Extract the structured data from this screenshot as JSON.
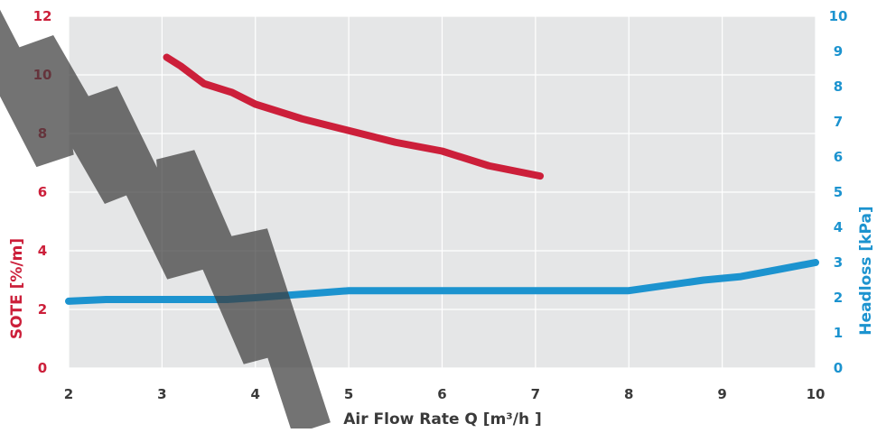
{
  "chart_data": {
    "type": "line",
    "title": "",
    "xlabel": "Air Flow Rate Q [m³/h ]",
    "ylabel_left": "SOTE [%/m]",
    "ylabel_right": "Headloss [kPa]",
    "xlim": [
      2,
      10
    ],
    "ylim_left": [
      0,
      12
    ],
    "ylim_right": [
      0,
      10
    ],
    "x_ticks": [
      "2",
      "3",
      "4",
      "5",
      "6",
      "7",
      "8",
      "9",
      "10"
    ],
    "y_left_ticks": [
      "0",
      "2",
      "4",
      "6",
      "8",
      "10",
      "12"
    ],
    "y_right_ticks": [
      "0",
      "1",
      "2",
      "3",
      "4",
      "5",
      "6",
      "7",
      "8",
      "9",
      "10"
    ],
    "grid": true,
    "series": [
      {
        "axis": "left",
        "color": "#cc1f3a",
        "x": [
          3.05,
          3.2,
          3.45,
          3.75,
          4.0,
          4.5,
          5.0,
          5.5,
          6.0,
          6.5,
          7.05
        ],
        "y": [
          10.6,
          10.3,
          9.7,
          9.4,
          9.0,
          8.5,
          8.1,
          7.7,
          7.4,
          6.9,
          6.55
        ]
      },
      {
        "axis": "right",
        "color": "#1c93cf",
        "x": [
          2.0,
          2.4,
          3.0,
          3.7,
          4.0,
          4.5,
          5.0,
          6.0,
          7.0,
          8.0,
          8.8,
          9.2,
          9.6,
          10.0
        ],
        "y": [
          1.9,
          1.95,
          1.95,
          1.95,
          2.0,
          2.1,
          2.2,
          2.2,
          2.2,
          2.2,
          2.5,
          2.6,
          2.8,
          3.0
        ]
      }
    ]
  }
}
